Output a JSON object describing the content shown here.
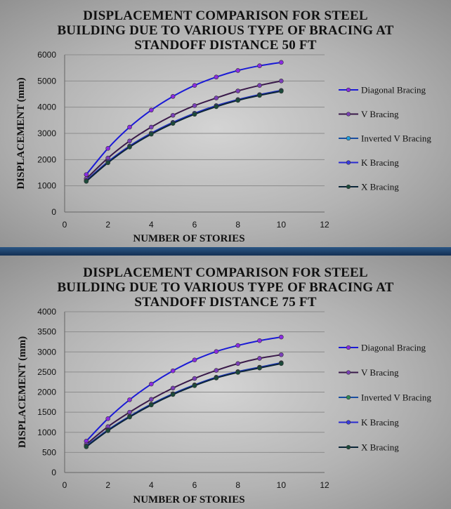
{
  "chart_data": [
    {
      "type": "line",
      "title": "DISPLACEMENT COMPARISON  FOR STEEL\nBUILDING DUE TO VARIOUS TYPE OF BRACING AT\nSTANDOFF  DISTANCE 50 FT",
      "xlabel": "NUMBER OF STORIES",
      "ylabel": "DISPLACEMENT (mm)",
      "xlim": [
        0,
        12
      ],
      "ylim": [
        0,
        6000
      ],
      "xticks": [
        "0",
        "2",
        "4",
        "6",
        "8",
        "10",
        "12"
      ],
      "yticks": [
        "0",
        "1000",
        "2000",
        "3000",
        "4000",
        "5000",
        "6000"
      ],
      "grid": "horizontal",
      "legend": "right",
      "x": [
        1,
        2,
        3,
        4,
        5,
        6,
        7,
        8,
        9,
        10
      ],
      "series": [
        {
          "name": "Diagonal Bracing",
          "color": "#1a1ad6",
          "marker": "#8a2be2",
          "values": [
            1430,
            2430,
            3240,
            3890,
            4410,
            4830,
            5150,
            5400,
            5580,
            5710
          ]
        },
        {
          "name": "V Bracing",
          "color": "#3a1a4a",
          "marker": "#7a3fb8",
          "values": [
            1270,
            2060,
            2710,
            3240,
            3690,
            4060,
            4350,
            4620,
            4830,
            5000
          ]
        },
        {
          "name": "Inverted V Bracing",
          "color": "#1a4ea0",
          "marker": "#20a0e0",
          "values": [
            1200,
            1920,
            2520,
            3010,
            3420,
            3770,
            4060,
            4290,
            4480,
            4640
          ]
        },
        {
          "name": "K Bracing",
          "color": "#2a2ad0",
          "marker": "#3a3ae0",
          "values": [
            1190,
            1910,
            2510,
            3000,
            3410,
            3760,
            4050,
            4280,
            4470,
            4630
          ]
        },
        {
          "name": "X Bracing",
          "color": "#0c2638",
          "marker": "#1b4a3a",
          "values": [
            1170,
            1880,
            2480,
            2970,
            3380,
            3730,
            4020,
            4260,
            4450,
            4610
          ]
        }
      ]
    },
    {
      "type": "line",
      "title": "DISPLACEMENT COMPARISON  FOR STEEL\nBUILDING DUE TO VARIOUS TYPE OF BRACING AT\nSTANDOFF  DISTANCE 75 FT",
      "xlabel": "NUMBER OF STORIES",
      "ylabel": "DISPLACEMENT (mm)",
      "xlim": [
        0,
        12
      ],
      "ylim": [
        0,
        4000
      ],
      "xticks": [
        "0",
        "2",
        "4",
        "6",
        "8",
        "10",
        "12"
      ],
      "yticks": [
        "0",
        "500",
        "1000",
        "1500",
        "2000",
        "2500",
        "3000",
        "3500",
        "4000"
      ],
      "grid": "horizontal",
      "legend": "right",
      "x": [
        1,
        2,
        3,
        4,
        5,
        6,
        7,
        8,
        9,
        10
      ],
      "series": [
        {
          "name": "Diagonal Bracing",
          "color": "#1a1ad6",
          "marker": "#8a2be2",
          "values": [
            780,
            1340,
            1810,
            2200,
            2530,
            2800,
            3010,
            3160,
            3280,
            3370
          ]
        },
        {
          "name": "V Bracing",
          "color": "#3a1a4a",
          "marker": "#7a3fb8",
          "values": [
            700,
            1140,
            1500,
            1820,
            2100,
            2340,
            2540,
            2710,
            2840,
            2930
          ]
        },
        {
          "name": "Inverted V Bracing",
          "color": "#1a4ea0",
          "marker": "#2f8a56",
          "values": [
            660,
            1060,
            1400,
            1700,
            1960,
            2180,
            2370,
            2510,
            2620,
            2730
          ]
        },
        {
          "name": "K Bracing",
          "color": "#2a2ad0",
          "marker": "#3a3ae0",
          "values": [
            650,
            1050,
            1390,
            1690,
            1950,
            2170,
            2360,
            2500,
            2610,
            2720
          ]
        },
        {
          "name": "X Bracing",
          "color": "#0c2638",
          "marker": "#1b4a3a",
          "values": [
            640,
            1040,
            1380,
            1680,
            1940,
            2160,
            2350,
            2490,
            2600,
            2710
          ]
        }
      ]
    }
  ]
}
